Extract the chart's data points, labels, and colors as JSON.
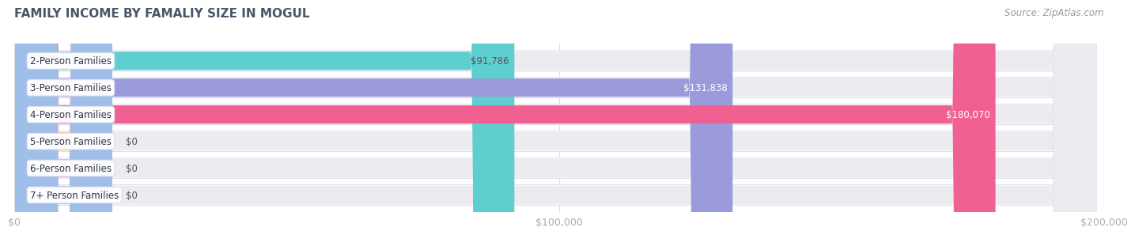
{
  "title": "FAMILY INCOME BY FAMALIY SIZE IN MOGUL",
  "source": "Source: ZipAtlas.com",
  "categories": [
    "2-Person Families",
    "3-Person Families",
    "4-Person Families",
    "5-Person Families",
    "6-Person Families",
    "7+ Person Families"
  ],
  "values": [
    91786,
    131838,
    180070,
    0,
    0,
    0
  ],
  "bar_colors": [
    "#5ecfce",
    "#9b9bdc",
    "#f06090",
    "#f5c897",
    "#f0a0a8",
    "#a0bfe8"
  ],
  "value_colors": [
    "#555555",
    "#ffffff",
    "#ffffff",
    "#555555",
    "#555555",
    "#555555"
  ],
  "xlim": [
    0,
    200000
  ],
  "xticks": [
    0,
    100000,
    200000
  ],
  "xtick_labels": [
    "$0",
    "$100,000",
    "$200,000"
  ],
  "bar_height": 0.68,
  "background_color": "#ffffff",
  "bar_bg_color": "#ebebf0",
  "row_bg_color": "#f7f7fa",
  "title_fontsize": 11,
  "source_fontsize": 8.5,
  "value_fontsize": 8.5,
  "tick_fontsize": 9,
  "category_fontsize": 8.5,
  "title_color": "#4a5568",
  "source_color": "#999999",
  "tick_color": "#aaaaaa",
  "grid_color": "#dddddd",
  "zero_bar_width": 18000
}
